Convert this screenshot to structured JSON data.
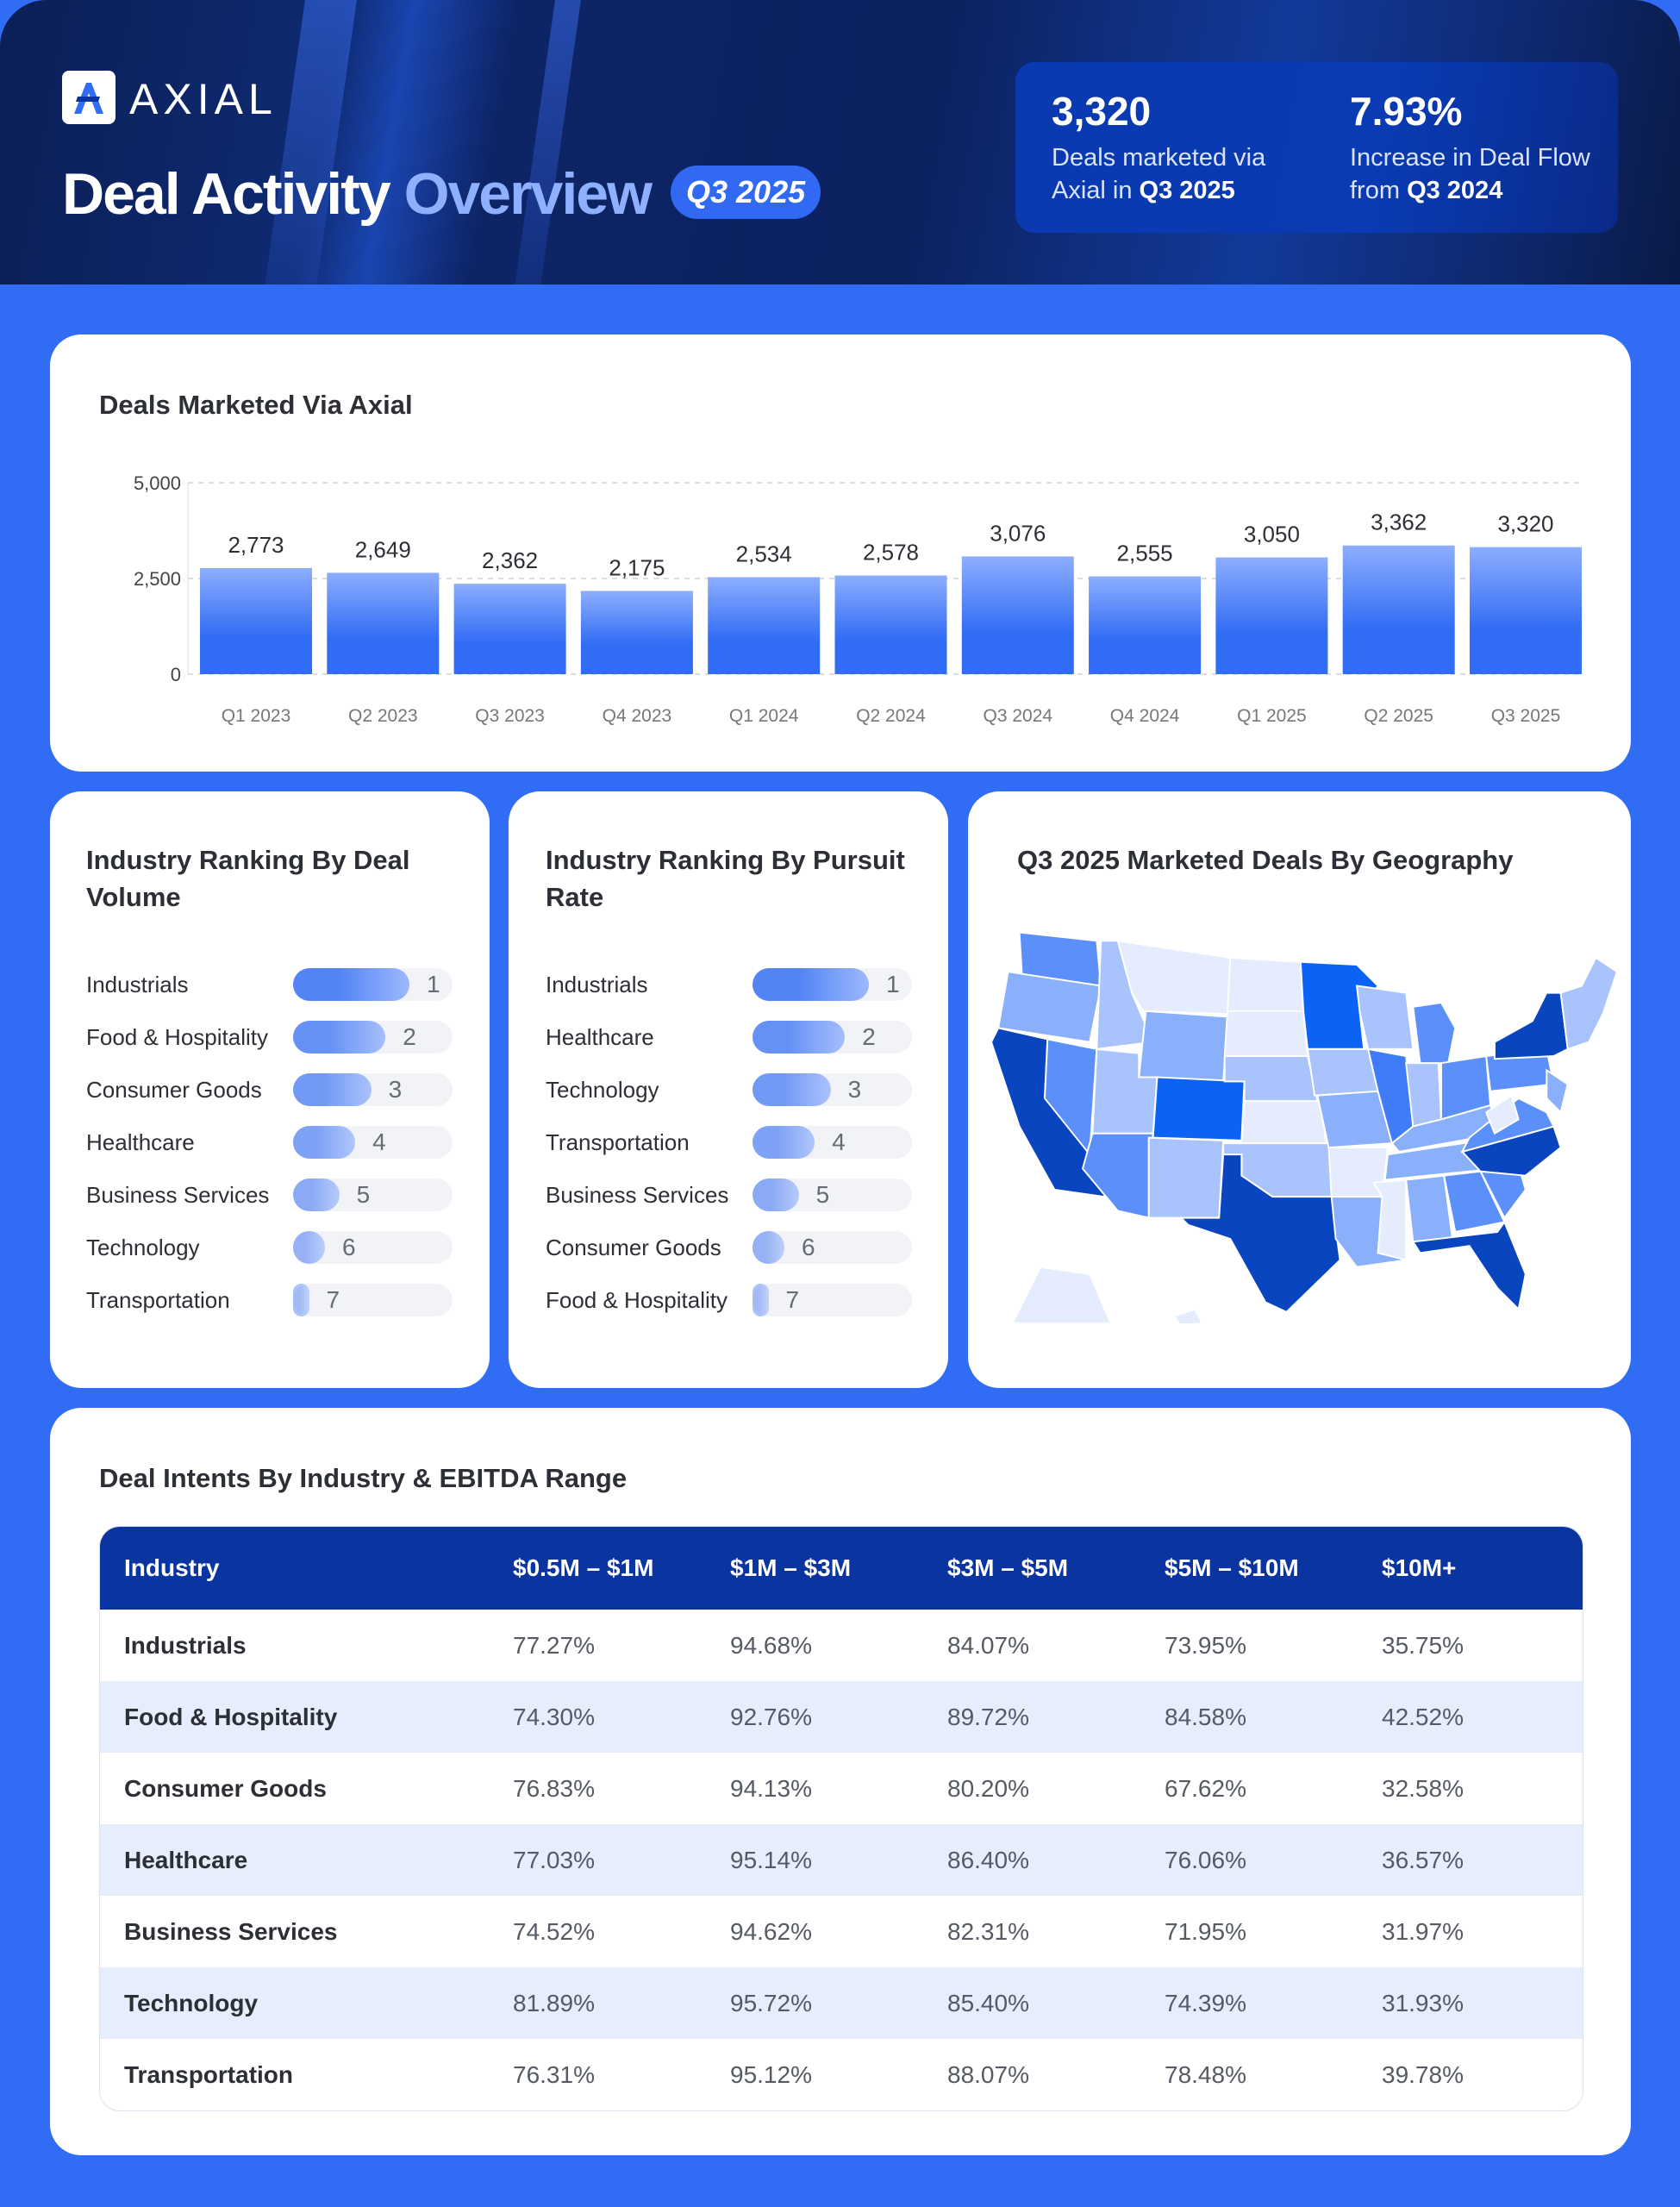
{
  "header": {
    "logo_text": "AXIAL",
    "title_main": "Deal Activity",
    "title_highlight": "Overview",
    "badge": "Q3 2025",
    "stats": [
      {
        "value": "3,320",
        "label_prefix": "Deals marketed via Axial in ",
        "label_bold": "Q3 2025"
      },
      {
        "value": "7.93%",
        "label_prefix": "Increase in Deal Flow from ",
        "label_bold": "Q3 2024"
      }
    ]
  },
  "chart_data": {
    "type": "bar",
    "title": "Deals Marketed Via Axial",
    "categories": [
      "Q1 2023",
      "Q2 2023",
      "Q3 2023",
      "Q4 2023",
      "Q1  2024",
      "Q2 2024",
      "Q3 2024",
      "Q4 2024",
      "Q1 2025",
      "Q2 2025",
      "Q3 2025"
    ],
    "values": [
      2773,
      2649,
      2362,
      2175,
      2534,
      2578,
      3076,
      2555,
      3050,
      3362,
      3320
    ],
    "value_labels": [
      "2,773",
      "2,649",
      "2,362",
      "2,175",
      "2,534",
      "2,578",
      "3,076",
      "2,555",
      "3,050",
      "3,362",
      "3,320"
    ],
    "yticks": [
      {
        "v": 0,
        "label": "0"
      },
      {
        "v": 2500,
        "label": "2,500"
      },
      {
        "v": 5000,
        "label": "5,000"
      }
    ],
    "ylim": [
      0,
      5000
    ],
    "xlabel": "",
    "ylabel": "",
    "colors": {
      "top": "#8daeff",
      "bottom": "#316cf4"
    }
  },
  "ranking_volume": {
    "title": "Industry Ranking By Deal Volume",
    "items": [
      {
        "label": "Industrials",
        "rank": "1",
        "fill": 0.73
      },
      {
        "label": "Food & Hospitality",
        "rank": "2",
        "fill": 0.58
      },
      {
        "label": "Consumer Goods",
        "rank": "3",
        "fill": 0.49
      },
      {
        "label": "Healthcare",
        "rank": "4",
        "fill": 0.39
      },
      {
        "label": "Business Services",
        "rank": "5",
        "fill": 0.29
      },
      {
        "label": "Technology",
        "rank": "6",
        "fill": 0.2
      },
      {
        "label": "Transportation",
        "rank": "7",
        "fill": 0.1
      }
    ]
  },
  "ranking_pursuit": {
    "title": "Industry Ranking By Pursuit Rate",
    "items": [
      {
        "label": "Industrials",
        "rank": "1",
        "fill": 0.73
      },
      {
        "label": "Healthcare",
        "rank": "2",
        "fill": 0.58
      },
      {
        "label": "Technology",
        "rank": "3",
        "fill": 0.49
      },
      {
        "label": "Transportation",
        "rank": "4",
        "fill": 0.39
      },
      {
        "label": "Business Services",
        "rank": "5",
        "fill": 0.29
      },
      {
        "label": "Consumer Goods",
        "rank": "6",
        "fill": 0.2
      },
      {
        "label": "Food & Hospitality",
        "rank": "7",
        "fill": 0.1
      }
    ]
  },
  "geo": {
    "title": "Q3 2025 Marketed Deals By Geography"
  },
  "table": {
    "title": "Deal Intents By Industry & EBITDA Range",
    "headers": [
      "Industry",
      "$0.5M – $1M",
      "$1M – $3M",
      "$3M – $5M",
      "$5M – $10M",
      "$10M+"
    ],
    "rows": [
      [
        "Industrials",
        "77.27%",
        "94.68%",
        "84.07%",
        "73.95%",
        "35.75%"
      ],
      [
        "Food & Hospitality",
        "74.30%",
        "92.76%",
        "89.72%",
        "84.58%",
        "42.52%"
      ],
      [
        "Consumer Goods",
        "76.83%",
        "94.13%",
        "80.20%",
        "67.62%",
        "32.58%"
      ],
      [
        "Healthcare",
        "77.03%",
        "95.14%",
        "86.40%",
        "76.06%",
        "36.57%"
      ],
      [
        "Business Services",
        "74.52%",
        "94.62%",
        "82.31%",
        "71.95%",
        "31.97%"
      ],
      [
        "Technology",
        "81.89%",
        "95.72%",
        "85.40%",
        "74.39%",
        "31.93%"
      ],
      [
        "Transportation",
        "76.31%",
        "95.12%",
        "88.07%",
        "78.48%",
        "39.78%"
      ]
    ]
  }
}
